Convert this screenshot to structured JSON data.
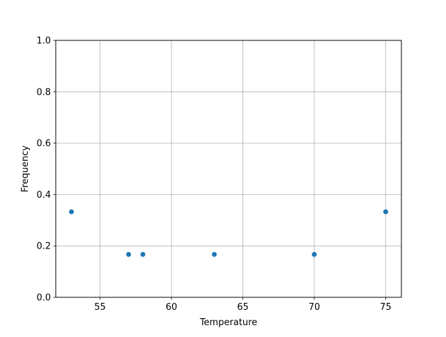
{
  "chart_data": {
    "type": "scatter",
    "title": "",
    "xlabel": "Temperature",
    "ylabel": "Frequency",
    "xlim": [
      51.9,
      76.1
    ],
    "ylim": [
      0.0,
      1.0
    ],
    "xticks": [
      55,
      60,
      65,
      70,
      75
    ],
    "xtick_labels": [
      "55",
      "60",
      "65",
      "70",
      "75"
    ],
    "yticks": [
      0.0,
      0.2,
      0.4,
      0.6,
      0.8,
      1.0
    ],
    "ytick_labels": [
      "0.0",
      "0.2",
      "0.4",
      "0.6",
      "0.8",
      "1.0"
    ],
    "grid": true,
    "color": "#1f77b4",
    "points": [
      {
        "x": 53,
        "y": 0.333
      },
      {
        "x": 57,
        "y": 0.167
      },
      {
        "x": 58,
        "y": 0.167
      },
      {
        "x": 63,
        "y": 0.167
      },
      {
        "x": 70,
        "y": 0.167
      },
      {
        "x": 75,
        "y": 0.333
      }
    ]
  }
}
